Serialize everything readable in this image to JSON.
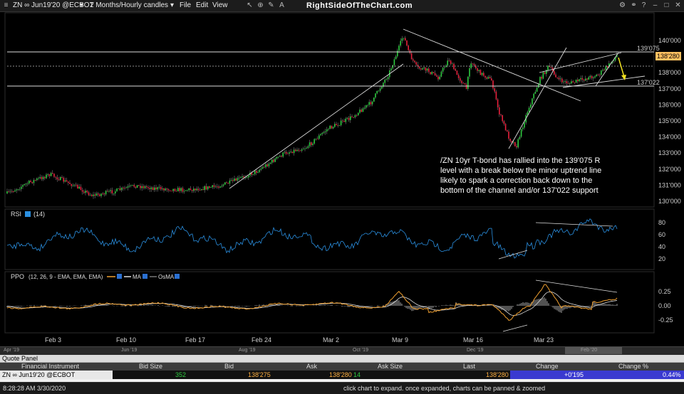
{
  "toolbar": {
    "symbol": "ZN ∞ Jun19'20 @ECBOT",
    "timeframe": "2 Months/Hourly candles",
    "menu": [
      "File",
      "Edit",
      "View"
    ],
    "brand": "RightSideOfTheChart.com"
  },
  "price_axis": {
    "ticks": [
      "140'000",
      "139'000",
      "138'000",
      "137'000",
      "136'000",
      "135'000",
      "134'000",
      "133'000",
      "132'000",
      "131'000",
      "130'000"
    ],
    "level_upper": "139'075",
    "level_lower": "137'022",
    "last_price": "138'280"
  },
  "annotation": [
    "/ZN 10yr T-bond has rallied into the 139'075 R",
    "level with a break below the minor uptrend line",
    "likely to spark a correction back down to the",
    "bottom of the channel and/or 137'022 support"
  ],
  "rsi": {
    "label": "RSI",
    "params": "(14)",
    "ticks": [
      "80",
      "60",
      "40",
      "20"
    ]
  },
  "ppo": {
    "label": "PPO",
    "params": "(12, 26, 9 - EMA, EMA, EMA)",
    "legend_ma": "MA",
    "legend_osma": "OsMA",
    "ticks": [
      "0.25",
      "0.00",
      "-0.25"
    ],
    "colors": {
      "ppo": "#f0a030",
      "ma": "#e0e0e0",
      "osma": "#777777"
    }
  },
  "dates": [
    "Feb 3",
    "Feb 10",
    "Feb 17",
    "Feb 24",
    "Mar 2",
    "Mar 9",
    "Mar 16",
    "Mar 23"
  ],
  "overview_dates": [
    "Apr '19",
    "Jun '19",
    "Aug '19",
    "Oct '19",
    "Dec '19",
    "Feb '20"
  ],
  "quote_panel": {
    "title": "Quote Panel",
    "headers": [
      "Financial Instrument",
      "Bid Size",
      "Bid",
      "Ask",
      "Ask Size",
      "Last",
      "Change",
      "Change %"
    ],
    "row": {
      "instrument": "ZN ∞ Jun19'20 @ECBOT",
      "bid_size": "352",
      "bid": "138'275",
      "ask": "138'280",
      "ask_size": "14",
      "last": "138'280",
      "change": "+0'195",
      "change_pct": "0.44%"
    }
  },
  "status": {
    "time": "8:28:28 AM 3/30/2020",
    "hint": "click chart to expand. once expanded, charts can be panned & zoomed"
  },
  "colors": {
    "up": "#2ecc40",
    "down": "#e8203c",
    "rsi": "#2a8fe0",
    "change_bg": "#3a3ad0",
    "level_bg": "#ffc060"
  }
}
